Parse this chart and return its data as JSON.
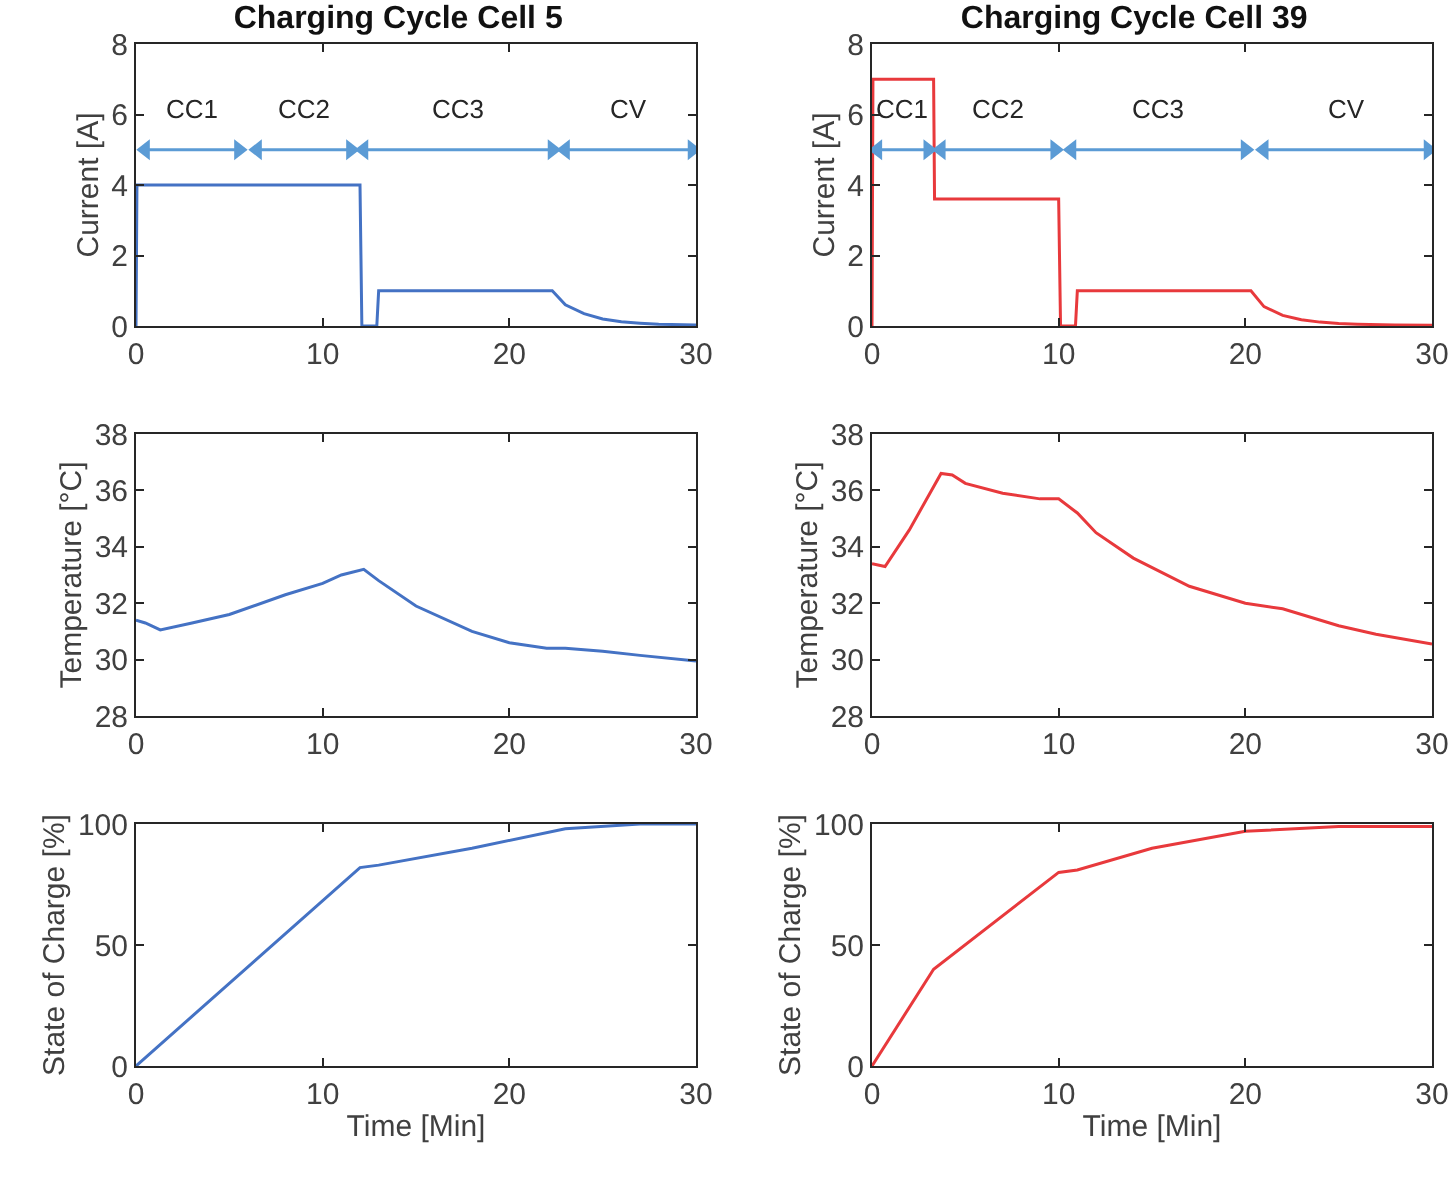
{
  "chart_data": [
    {
      "type": "line",
      "title": "Charging Cycle Cell 5",
      "ylabel": "Current [A]",
      "xlim": [
        0,
        30
      ],
      "ylim": [
        0,
        8
      ],
      "xticks": [
        0,
        10,
        20,
        30
      ],
      "yticks": [
        0,
        2,
        4,
        6,
        8
      ],
      "series": [
        {
          "color": "#4472c4",
          "x": [
            0,
            0.05,
            12,
            12.1,
            12.9,
            13,
            22.3,
            23,
            24,
            25,
            26,
            27,
            28,
            30
          ],
          "values": [
            0,
            4,
            4,
            0,
            0,
            1,
            1,
            0.6,
            0.35,
            0.2,
            0.12,
            0.08,
            0.05,
            0.03
          ]
        },
        {
          "name": "CC1",
          "color": "#5b9bd5",
          "marker": "triangle",
          "x": [
            0.5,
            5.5
          ],
          "values": [
            5,
            5
          ]
        },
        {
          "name": "CC2",
          "color": "#5b9bd5",
          "marker": "triangle",
          "x": [
            6.5,
            11.5
          ],
          "values": [
            5,
            5
          ]
        },
        {
          "name": "CC3",
          "color": "#5b9bd5",
          "marker": "triangle",
          "x": [
            12.2,
            22.3
          ],
          "values": [
            5,
            5
          ]
        },
        {
          "name": "CV",
          "color": "#5b9bd5",
          "marker": "triangle",
          "x": [
            23,
            29.8
          ],
          "values": [
            5,
            5
          ]
        }
      ]
    },
    {
      "type": "line",
      "title": "Charging Cycle Cell 39",
      "ylabel": "Current [A]",
      "xlim": [
        0,
        30
      ],
      "ylim": [
        0,
        8
      ],
      "xticks": [
        0,
        10,
        20,
        30
      ],
      "yticks": [
        0,
        2,
        4,
        6,
        8
      ],
      "series": [
        {
          "color": "#e8393c",
          "x": [
            0,
            0.05,
            3.3,
            3.35,
            10,
            10.1,
            10.9,
            11,
            20.3,
            21,
            22,
            23,
            24,
            25,
            26,
            28,
            30
          ],
          "values": [
            0,
            7,
            7,
            3.6,
            3.6,
            0,
            0,
            1,
            1,
            0.55,
            0.3,
            0.18,
            0.11,
            0.07,
            0.05,
            0.03,
            0.02
          ]
        },
        {
          "name": "CC1",
          "color": "#5b9bd5",
          "marker": "triangle",
          "x": [
            0.3,
            3
          ],
          "values": [
            5,
            5
          ]
        },
        {
          "name": "CC2",
          "color": "#5b9bd5",
          "marker": "triangle",
          "x": [
            3.7,
            9.8
          ],
          "values": [
            5,
            5
          ]
        },
        {
          "name": "CC3",
          "color": "#5b9bd5",
          "marker": "triangle",
          "x": [
            10.7,
            20
          ],
          "values": [
            5,
            5
          ]
        },
        {
          "name": "CV",
          "color": "#5b9bd5",
          "marker": "triangle",
          "x": [
            21,
            29.8
          ],
          "values": [
            5,
            5
          ]
        }
      ]
    },
    {
      "type": "line",
      "ylabel": "Temperature [°C]",
      "xlim": [
        0,
        30
      ],
      "ylim": [
        28,
        38
      ],
      "xticks": [
        0,
        10,
        20,
        30
      ],
      "yticks": [
        28,
        30,
        32,
        34,
        36,
        38
      ],
      "series": [
        {
          "color": "#4472c4",
          "x": [
            0,
            0.5,
            1.3,
            3,
            5,
            8,
            10,
            11,
            12.2,
            13,
            15,
            18,
            20,
            22,
            23,
            25,
            27,
            30
          ],
          "values": [
            31.4,
            31.3,
            31.05,
            31.3,
            31.6,
            32.3,
            32.7,
            33,
            33.2,
            32.8,
            31.9,
            31,
            30.6,
            30.4,
            30.4,
            30.3,
            30.15,
            29.95
          ]
        }
      ]
    },
    {
      "type": "line",
      "ylabel": "Temperature [°C]",
      "xlim": [
        0,
        30
      ],
      "ylim": [
        28,
        38
      ],
      "xticks": [
        0,
        10,
        20,
        30
      ],
      "yticks": [
        28,
        30,
        32,
        34,
        36,
        38
      ],
      "series": [
        {
          "color": "#e8393c",
          "x": [
            0,
            0.7,
            2,
            3.7,
            4.3,
            5,
            7,
            9,
            10,
            11,
            12,
            14,
            17,
            20,
            22,
            25,
            27,
            30
          ],
          "values": [
            33.4,
            33.3,
            34.6,
            36.6,
            36.55,
            36.25,
            35.9,
            35.7,
            35.7,
            35.2,
            34.5,
            33.6,
            32.6,
            32,
            31.8,
            31.2,
            30.9,
            30.55
          ]
        }
      ]
    },
    {
      "type": "line",
      "xlabel": "Time [Min]",
      "ylabel": "State of Charge [%]",
      "xlim": [
        0,
        30
      ],
      "ylim": [
        0,
        100
      ],
      "xticks": [
        0,
        10,
        20,
        30
      ],
      "yticks": [
        0,
        50,
        100
      ],
      "series": [
        {
          "color": "#4472c4",
          "x": [
            0,
            12,
            13,
            18,
            23,
            27,
            30
          ],
          "values": [
            0,
            82,
            83,
            90,
            98,
            100,
            100
          ]
        }
      ]
    },
    {
      "type": "line",
      "xlabel": "Time [Min]",
      "ylabel": "State of Charge [%]",
      "xlim": [
        0,
        30
      ],
      "ylim": [
        0,
        100
      ],
      "xticks": [
        0,
        10,
        20,
        30
      ],
      "yticks": [
        0,
        50,
        100
      ],
      "series": [
        {
          "color": "#e8393c",
          "x": [
            0,
            3.3,
            10,
            11,
            15,
            20,
            25,
            30
          ],
          "values": [
            0,
            40,
            80,
            81,
            90,
            97,
            99,
            99
          ]
        }
      ]
    }
  ]
}
